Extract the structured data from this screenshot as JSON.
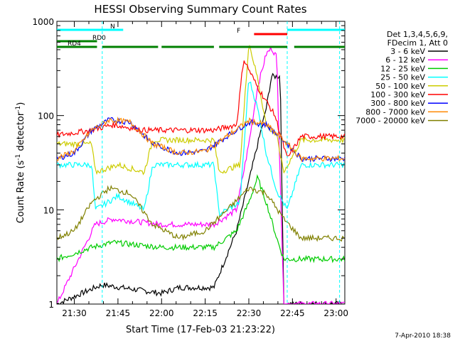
{
  "chart_data": {
    "type": "line",
    "title": "HESSI Observing Summary Count Rates",
    "xlabel": "Start Time (17-Feb-03 21:23:22)",
    "ylabel": "Count Rate (s^-1 detector^-1)",
    "y_scale": "log",
    "ylim": [
      1,
      1000
    ],
    "xlim_minutes": [
      21.4,
      23.05
    ],
    "x_ticks": [
      "21:30",
      "21:45",
      "22:00",
      "22:15",
      "22:30",
      "22:45",
      "23:00"
    ],
    "y_ticks": [
      "1",
      "10",
      "100",
      "1000"
    ],
    "grid": false,
    "legend_position": "right",
    "legend_header": [
      "Det 1,3,4,5,6,9,",
      "FDecim 1, Att 0"
    ],
    "footer": "7-Apr-2010 18:38",
    "series": [
      {
        "name": "3 - 6 keV",
        "color": "#000000",
        "points": [
          [
            21.4,
            1.0
          ],
          [
            21.62,
            1.5
          ],
          [
            21.66,
            1.6
          ],
          [
            22.0,
            1.3
          ],
          [
            22.1,
            1.5
          ],
          [
            22.3,
            1.5
          ],
          [
            22.43,
            6.0
          ],
          [
            22.5,
            20
          ],
          [
            22.6,
            120
          ],
          [
            22.63,
            260
          ],
          [
            22.68,
            260
          ],
          [
            22.7,
            1.0
          ],
          [
            23.05,
            1.0
          ]
        ]
      },
      {
        "name": "6 - 12 keV",
        "color": "#ff00ff",
        "points": [
          [
            21.4,
            1.0
          ],
          [
            21.62,
            7.0
          ],
          [
            21.72,
            8.0
          ],
          [
            22.0,
            7.0
          ],
          [
            22.3,
            7.0
          ],
          [
            22.43,
            10
          ],
          [
            22.5,
            50
          ],
          [
            22.55,
            200
          ],
          [
            22.6,
            450
          ],
          [
            22.63,
            520
          ],
          [
            22.66,
            420
          ],
          [
            22.7,
            1.0
          ],
          [
            23.05,
            1.0
          ]
        ]
      },
      {
        "name": "12 - 25 keV",
        "color": "#00cc00",
        "points": [
          [
            21.4,
            3.0
          ],
          [
            21.6,
            4.0
          ],
          [
            21.72,
            4.5
          ],
          [
            22.0,
            4.0
          ],
          [
            22.3,
            4.0
          ],
          [
            22.43,
            6.0
          ],
          [
            22.5,
            12
          ],
          [
            22.55,
            22
          ],
          [
            22.6,
            12
          ],
          [
            22.66,
            5
          ],
          [
            22.7,
            3
          ],
          [
            22.8,
            3
          ],
          [
            23.05,
            3.0
          ]
        ]
      },
      {
        "name": "25 - 50 keV",
        "color": "#00ffff",
        "points": [
          [
            21.4,
            30
          ],
          [
            21.6,
            30
          ],
          [
            21.62,
            10
          ],
          [
            21.75,
            14
          ],
          [
            21.9,
            10
          ],
          [
            21.95,
            30
          ],
          [
            22.3,
            30
          ],
          [
            22.33,
            9
          ],
          [
            22.45,
            12
          ],
          [
            22.5,
            250
          ],
          [
            22.55,
            120
          ],
          [
            22.6,
            40
          ],
          [
            22.66,
            16
          ],
          [
            22.72,
            10
          ],
          [
            22.8,
            30
          ],
          [
            23.05,
            30
          ]
        ]
      },
      {
        "name": "50 - 100 keV",
        "color": "#cccc00",
        "points": [
          [
            21.4,
            50
          ],
          [
            21.6,
            50
          ],
          [
            21.62,
            25
          ],
          [
            21.75,
            30
          ],
          [
            21.9,
            25
          ],
          [
            21.95,
            55
          ],
          [
            22.3,
            55
          ],
          [
            22.33,
            25
          ],
          [
            22.45,
            30
          ],
          [
            22.5,
            600
          ],
          [
            22.55,
            250
          ],
          [
            22.6,
            80
          ],
          [
            22.66,
            60
          ],
          [
            22.7,
            25
          ],
          [
            22.8,
            55
          ],
          [
            23.05,
            55
          ]
        ]
      },
      {
        "name": "100 - 300 keV",
        "color": "#ff0000",
        "points": [
          [
            21.4,
            62
          ],
          [
            21.6,
            70
          ],
          [
            21.66,
            75
          ],
          [
            21.72,
            80
          ],
          [
            21.9,
            70
          ],
          [
            21.95,
            70
          ],
          [
            22.3,
            70
          ],
          [
            22.43,
            80
          ],
          [
            22.47,
            400
          ],
          [
            22.55,
            200
          ],
          [
            22.65,
            100
          ],
          [
            22.72,
            35
          ],
          [
            22.8,
            60
          ],
          [
            23.05,
            60
          ]
        ]
      },
      {
        "name": "300 - 800 keV",
        "color": "#0000ff",
        "points": [
          [
            21.4,
            35
          ],
          [
            21.5,
            40
          ],
          [
            21.6,
            70
          ],
          [
            21.7,
            90
          ],
          [
            21.82,
            85
          ],
          [
            21.95,
            50
          ],
          [
            22.1,
            40
          ],
          [
            22.25,
            42
          ],
          [
            22.4,
            65
          ],
          [
            22.5,
            85
          ],
          [
            22.6,
            80
          ],
          [
            22.7,
            55
          ],
          [
            22.8,
            35
          ],
          [
            23.05,
            35
          ]
        ]
      },
      {
        "name": "800 - 7000 keV",
        "color": "#ff8800",
        "points": [
          [
            21.4,
            35
          ],
          [
            21.5,
            42
          ],
          [
            21.6,
            70
          ],
          [
            21.7,
            90
          ],
          [
            21.82,
            85
          ],
          [
            21.95,
            50
          ],
          [
            22.1,
            40
          ],
          [
            22.25,
            42
          ],
          [
            22.4,
            65
          ],
          [
            22.5,
            88
          ],
          [
            22.6,
            80
          ],
          [
            22.7,
            55
          ],
          [
            22.8,
            35
          ],
          [
            23.05,
            35
          ]
        ]
      },
      {
        "name": "7000 - 20000 keV",
        "color": "#808000",
        "points": [
          [
            21.4,
            5
          ],
          [
            21.5,
            6
          ],
          [
            21.6,
            12
          ],
          [
            21.7,
            17
          ],
          [
            21.82,
            15
          ],
          [
            21.95,
            7
          ],
          [
            22.1,
            5
          ],
          [
            22.25,
            6
          ],
          [
            22.4,
            11
          ],
          [
            22.5,
            17
          ],
          [
            22.6,
            15
          ],
          [
            22.7,
            8
          ],
          [
            22.8,
            5
          ],
          [
            23.05,
            5
          ]
        ]
      }
    ],
    "flags": [
      {
        "label": "N",
        "color": "#00ffff",
        "segments": [
          [
            21.4,
            21.78
          ],
          [
            22.72,
            23.05
          ]
        ]
      },
      {
        "label": "RD0",
        "color": "#008000",
        "segments": [
          [
            21.4,
            21.63
          ]
        ]
      },
      {
        "label": "RD4",
        "color": "#008000",
        "segments": [
          [
            21.4,
            21.63
          ],
          [
            21.66,
            21.98
          ],
          [
            22.0,
            22.3
          ],
          [
            22.33,
            22.72
          ],
          [
            22.76,
            23.05
          ]
        ]
      },
      {
        "label": "F",
        "color": "#ff0000",
        "segments": [
          [
            22.53,
            22.72
          ]
        ]
      }
    ],
    "markers_minutes": [
      21.66,
      22.72,
      23.02
    ]
  }
}
